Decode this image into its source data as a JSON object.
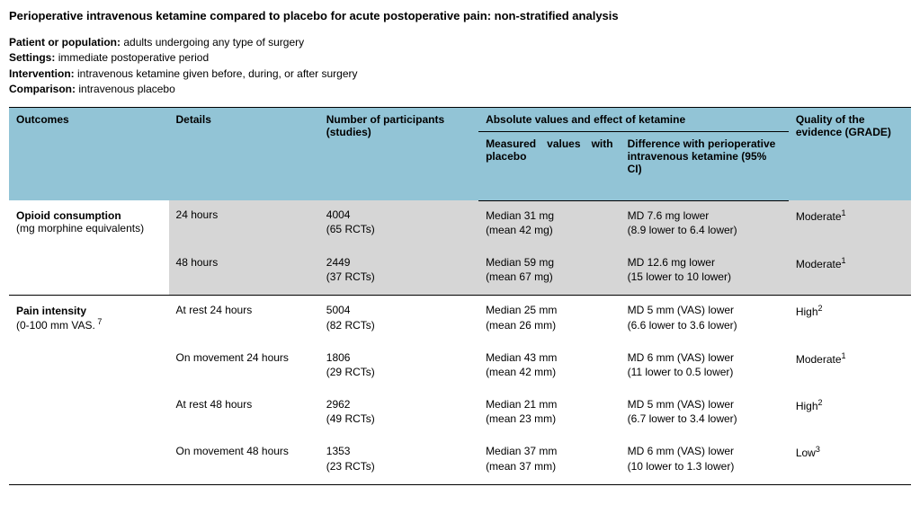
{
  "title": "Perioperative intravenous ketamine compared to placebo for acute postoperative pain: non-stratified analysis",
  "meta": {
    "population_label": "Patient or population:",
    "population_value": "adults undergoing any type of surgery",
    "settings_label": "Settings:",
    "settings_value": "immediate postoperative period",
    "intervention_label": "Intervention:",
    "intervention_value": "intravenous ketamine given before, during, or after surgery",
    "comparison_label": "Comparison:",
    "comparison_value": "intravenous placebo"
  },
  "headers": {
    "outcomes": "Outcomes",
    "details": "Details",
    "participants": "Number of participants (studies)",
    "absolute": "Absolute values and effect of ketamine",
    "measured": "Measured values with placebo",
    "difference": "Difference with perioperative intravenous ketamine (95% CI)",
    "grade": "Quality of the evidence (GRADE)"
  },
  "groups": [
    {
      "outcome_name": "Opioid consumption",
      "outcome_unit": "(mg morphine equivalents)",
      "shade": "shaded",
      "rows": [
        {
          "details": "24 hours",
          "participants_line1": "4004",
          "participants_line2": "(65 RCTs)",
          "measured_line1": "Median 31 mg",
          "measured_line2": "(mean 42 mg)",
          "difference_line1": "MD 7.6 mg lower",
          "difference_line2": "(8.9 lower to 6.4 lower)",
          "grade": "Moderate",
          "grade_sup": "1"
        },
        {
          "details": "48 hours",
          "participants_line1": "2449",
          "participants_line2": "(37 RCTs)",
          "measured_line1": "Median 59 mg",
          "measured_line2": "(mean 67 mg)",
          "difference_line1": "MD 12.6 mg lower",
          "difference_line2": "(15 lower to 10 lower)",
          "grade": "Moderate",
          "grade_sup": "1"
        }
      ]
    },
    {
      "outcome_name": "Pain intensity",
      "outcome_unit": "(0-100 mm VAS.",
      "outcome_sup": "7",
      "shade": "plain",
      "rows": [
        {
          "details": "At rest 24 hours",
          "participants_line1": "5004",
          "participants_line2": "(82 RCTs)",
          "measured_line1": "Median 25 mm",
          "measured_line2": "(mean 26 mm)",
          "difference_line1": "MD 5 mm (VAS) lower",
          "difference_line2": "(6.6 lower to 3.6 lower)",
          "grade": "High",
          "grade_sup": "2"
        },
        {
          "details": "On movement 24 hours",
          "participants_line1": "1806",
          "participants_line2": "(29 RCTs)",
          "measured_line1": "Median 43 mm",
          "measured_line2": "(mean 42 mm)",
          "difference_line1": "MD 6 mm (VAS) lower",
          "difference_line2": "(11 lower to 0.5 lower)",
          "grade": "Moderate",
          "grade_sup": "1"
        },
        {
          "details": "At rest 48 hours",
          "participants_line1": "2962",
          "participants_line2": "(49 RCTs)",
          "measured_line1": "Median 21 mm",
          "measured_line2": "(mean 23 mm)",
          "difference_line1": "MD 5 mm (VAS) lower",
          "difference_line2": "(6.7 lower to 3.4 lower)",
          "grade": "High",
          "grade_sup": "2"
        },
        {
          "details": "On movement 48 hours",
          "participants_line1": "1353",
          "participants_line2": "(23 RCTs)",
          "measured_line1": "Median 37 mm",
          "measured_line2": "(mean 37 mm)",
          "difference_line1": "MD 6 mm (VAS) lower",
          "difference_line2": "(10 lower to 1.3 lower)",
          "grade": "Low",
          "grade_sup": "3"
        }
      ]
    }
  ]
}
